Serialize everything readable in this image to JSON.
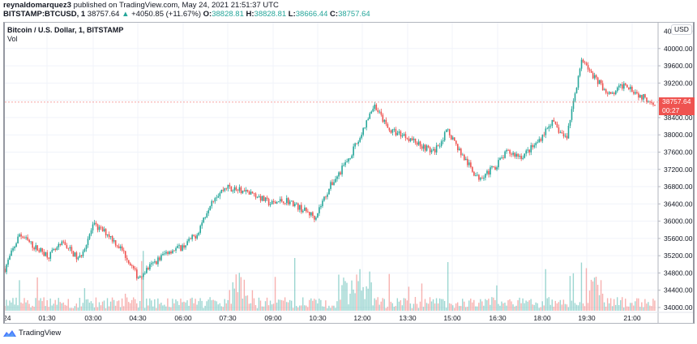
{
  "header": {
    "author": "reynaldomarquez3",
    "published_text": "published on TradingView.com, May 24, 2021 21:51:37 UTC",
    "symbol": "BITSTAMP:BTCUSD, 1",
    "last_price": "38757.64",
    "change_arrow": "▲",
    "change": "+4050.85 (+11.67%)",
    "open_label": "O:",
    "open": "38828.81",
    "high_label": "H:",
    "high": "38828.81",
    "low_label": "L:",
    "low": "38666.44",
    "close_label": "C:",
    "close": "38757.64"
  },
  "legend": {
    "title": "Bitcoin / U.S. Dollar, 1, BITSTAMP",
    "volume_label": "Vol"
  },
  "price_axis": {
    "currency": "USD",
    "current_price_label": "38757.64",
    "countdown": "00:27"
  },
  "footer": {
    "brand": "TradingView"
  },
  "colors": {
    "up": "#26a69a",
    "down": "#ef5350",
    "up_volume": "#26a69a",
    "down_volume": "#ef5350",
    "grid": "#f0f3fa",
    "price_line": "#ef5350",
    "axis_text": "#131722"
  },
  "chart_data": {
    "type": "candlestick",
    "title": "Bitcoin / U.S. Dollar, 1, BITSTAMP",
    "subtitle": "BITSTAMP:BTCUSD 1-minute, May 24, 2021",
    "xlabel": "",
    "ylabel": "USD",
    "ylim": [
      33900,
      40400
    ],
    "y_ticks": [
      34000,
      34400,
      34800,
      35200,
      35600,
      36000,
      36400,
      36800,
      37200,
      37600,
      38000,
      38400,
      38800,
      39200,
      39600,
      40000
    ],
    "y_tick_labels": [
      "34000.00",
      "34400.00",
      "34800.00",
      "35200.00",
      "35600.00",
      "36000.00",
      "36400.00",
      "36800.00",
      "37200.00",
      "37600.00",
      "38000.00",
      "38400.00",
      "38800.00",
      "39200.00",
      "39600.00",
      "40000.00"
    ],
    "x_tick_labels": [
      "24",
      "01:30",
      "03:00",
      "04:30",
      "06:00",
      "07:30",
      "09:00",
      "10:30",
      "12:00",
      "13:30",
      "15:00",
      "16:30",
      "18:00",
      "19:30",
      "21:00"
    ],
    "grid": true,
    "legend": [
      "Vol"
    ],
    "current_price": 38757.64,
    "approx_close_path": {
      "x": [
        "00:00",
        "00:30",
        "01:00",
        "01:30",
        "02:00",
        "02:30",
        "03:00",
        "03:30",
        "04:00",
        "04:30",
        "05:00",
        "05:30",
        "06:00",
        "06:30",
        "07:00",
        "07:30",
        "08:00",
        "08:30",
        "09:00",
        "09:30",
        "10:00",
        "10:30",
        "11:00",
        "11:30",
        "12:00",
        "12:30",
        "13:00",
        "13:30",
        "14:00",
        "14:30",
        "15:00",
        "15:30",
        "16:00",
        "16:30",
        "17:00",
        "17:30",
        "18:00",
        "18:30",
        "19:00",
        "19:30",
        "20:00",
        "20:30",
        "21:00",
        "21:30",
        "21:51"
      ],
      "values": [
        34900,
        35700,
        35400,
        35200,
        35500,
        35100,
        35900,
        35700,
        35300,
        34700,
        35000,
        35300,
        35400,
        35700,
        36500,
        36800,
        36700,
        36600,
        36400,
        36500,
        36300,
        36100,
        36800,
        37300,
        37900,
        38700,
        38100,
        38000,
        37800,
        37600,
        38100,
        37500,
        37000,
        37200,
        37600,
        37500,
        37800,
        38300,
        37900,
        39700,
        39300,
        38900,
        39200,
        38900,
        38757.64
      ]
    },
    "volume": {
      "note": "volume bars scaled to lower pane, peaks near 07:00, 11:30-12:00 and 19:30"
    }
  }
}
